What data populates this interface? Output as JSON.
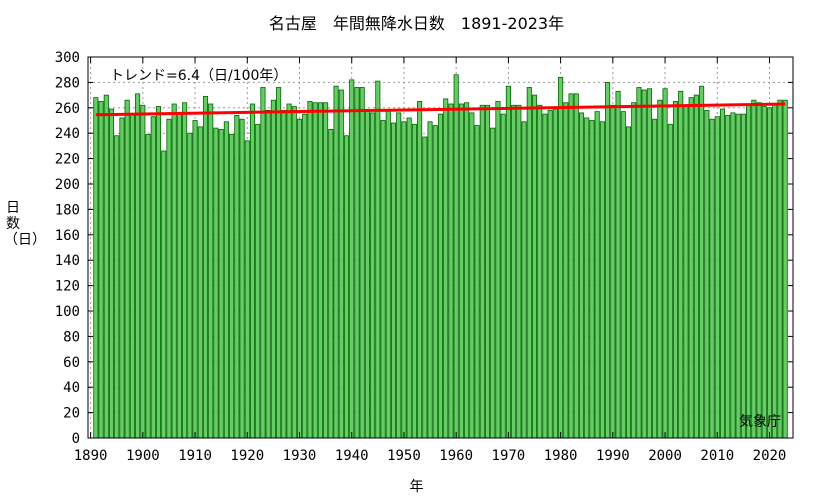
{
  "chart_data": {
    "type": "bar",
    "title": "名古屋　年間無降水日数　1891-2023年",
    "xlabel": "年",
    "ylabel": "日数（日）",
    "trend_label": "トレンド=6.4（日/100年）",
    "source": "気象庁",
    "ylim": [
      0,
      300
    ],
    "xlim": [
      1889.5,
      2024.5
    ],
    "yticks": [
      0,
      20,
      40,
      60,
      80,
      100,
      120,
      140,
      160,
      180,
      200,
      220,
      240,
      260,
      280,
      300
    ],
    "xticks": [
      1890,
      1900,
      1910,
      1920,
      1930,
      1940,
      1950,
      1960,
      1970,
      1980,
      1990,
      2000,
      2010,
      2020
    ],
    "grid": true,
    "colors": {
      "bar_fill": "#66cc66",
      "bar_stroke": "#006600",
      "trend": "#ff0000",
      "grid": "#999999"
    },
    "trend": {
      "x": [
        1891,
        2023
      ],
      "y": [
        254.5,
        263.0
      ]
    },
    "x_start": 1891,
    "x_end": 2023,
    "values": [
      268,
      265,
      270,
      259,
      238,
      252,
      266,
      255,
      271,
      262,
      239,
      253,
      261,
      226,
      251,
      263,
      255,
      264,
      240,
      250,
      245,
      269,
      263,
      244,
      243,
      249,
      239,
      254,
      251,
      234,
      263,
      247,
      276,
      258,
      266,
      276,
      258,
      263,
      261,
      251,
      255,
      265,
      264,
      264,
      264,
      243,
      277,
      274,
      238,
      282,
      276,
      276,
      258,
      256,
      281,
      250,
      258,
      248,
      256,
      249,
      252,
      247,
      265,
      237,
      249,
      246,
      255,
      267,
      263,
      286,
      263,
      264,
      256,
      246,
      262,
      262,
      244,
      265,
      255,
      277,
      262,
      262,
      249,
      276,
      270,
      262,
      255,
      258,
      259,
      284,
      264,
      271,
      271,
      256,
      252,
      250,
      257,
      249,
      280,
      262,
      273,
      257,
      245,
      264,
      276,
      274,
      275,
      251,
      266,
      275,
      247,
      265,
      273,
      262,
      268,
      270,
      277,
      258,
      251,
      253,
      259,
      254,
      256,
      255,
      255,
      263,
      266,
      264,
      261,
      260,
      263,
      266,
      266
    ]
  }
}
